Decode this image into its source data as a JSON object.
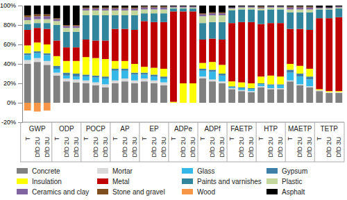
{
  "chart_data": {
    "type": "bar",
    "stacked": true,
    "categories": [
      "T",
      "DfD 2U",
      "DfD 3U",
      "T",
      "DfD 2U",
      "DfD 3U",
      "T",
      "DfD 2U",
      "DfD 3U",
      "T",
      "DfD 2U",
      "DfD 3U",
      "T",
      "DfD 2U",
      "DfD 3U",
      "T",
      "DfD 2U",
      "DfD 3U",
      "T",
      "DfD 2U",
      "DfD 3U",
      "T",
      "DfD 2U",
      "DfD 3U",
      "T",
      "DfD 2U",
      "DfD 3U",
      "T",
      "DfD 2U",
      "DfD 3U",
      "T",
      "DfD 2U",
      "DfD 3U"
    ],
    "groups": [
      "GWP",
      "ODP",
      "POCP",
      "AP",
      "EP",
      "ADPe",
      "ADPf",
      "FAETP",
      "HTP",
      "MAETP",
      "TETP"
    ],
    "ylim": [
      -20,
      100
    ],
    "yticks": [
      {
        "value": -20,
        "label": "-20%"
      },
      {
        "value": 0,
        "label": "0%"
      },
      {
        "value": 20,
        "label": "20%"
      },
      {
        "value": 40,
        "label": "40%"
      },
      {
        "value": 60,
        "label": "60%"
      },
      {
        "value": 80,
        "label": "80%"
      },
      {
        "value": 100,
        "label": "100%"
      }
    ],
    "grid": false,
    "legend": "bottom",
    "series": [
      {
        "name": "Concrete",
        "color": "#808080",
        "values": [
          40,
          42,
          39,
          28,
          22,
          21,
          20,
          18,
          16,
          20,
          22,
          20,
          22,
          20,
          18,
          0,
          0,
          0,
          25,
          22,
          20,
          14,
          12,
          11,
          16,
          14,
          14,
          22,
          18,
          16,
          12,
          10,
          10
        ]
      },
      {
        "name": "Mortar",
        "color": "#d9d9d9",
        "values": [
          4,
          4,
          4,
          3,
          3,
          3,
          3,
          3,
          3,
          3,
          3,
          3,
          3,
          3,
          3,
          0,
          0,
          0,
          2,
          2,
          2,
          1,
          1,
          1,
          1,
          1,
          1,
          1,
          1,
          1,
          1,
          1,
          1
        ]
      },
      {
        "name": "Glass",
        "color": "#33b8e8",
        "values": [
          5,
          5,
          6,
          4,
          3,
          3,
          4,
          5,
          6,
          10,
          8,
          6,
          4,
          4,
          4,
          0,
          0,
          0,
          6,
          8,
          6,
          1,
          2,
          2,
          2,
          3,
          3,
          8,
          8,
          7,
          0,
          0,
          0
        ]
      },
      {
        "name": "Gypsum",
        "color": "#3d7fa6",
        "values": [
          2,
          2,
          2,
          3,
          3,
          3,
          2,
          2,
          2,
          2,
          2,
          2,
          2,
          2,
          2,
          0,
          0,
          0,
          2,
          2,
          2,
          1,
          1,
          1,
          1,
          1,
          1,
          3,
          3,
          3,
          0,
          0,
          0
        ]
      },
      {
        "name": "Insulation",
        "color": "#ffff00",
        "values": [
          8,
          9,
          9,
          10,
          12,
          13,
          18,
          18,
          18,
          8,
          8,
          9,
          6,
          7,
          8,
          1,
          20,
          20,
          6,
          8,
          9,
          5,
          5,
          5,
          7,
          9,
          8,
          6,
          8,
          8,
          1,
          1,
          1
        ]
      },
      {
        "name": "Metal",
        "color": "#c00000",
        "values": [
          16,
          15,
          16,
          16,
          14,
          14,
          18,
          18,
          19,
          33,
          33,
          35,
          47,
          47,
          48,
          93,
          74,
          74,
          24,
          24,
          26,
          60,
          62,
          63,
          54,
          54,
          55,
          36,
          38,
          40,
          73,
          75,
          76
        ]
      },
      {
        "name": "Paints and varnishes",
        "color": "#31859c",
        "values": [
          6,
          5,
          6,
          16,
          16,
          16,
          25,
          26,
          26,
          14,
          14,
          15,
          8,
          9,
          9,
          3,
          3,
          3,
          17,
          17,
          18,
          13,
          13,
          13,
          14,
          14,
          14,
          17,
          17,
          18,
          9,
          9,
          9
        ]
      },
      {
        "name": "Plastic",
        "color": "#c3d69b",
        "values": [
          4,
          4,
          4,
          4,
          4,
          4,
          5,
          5,
          5,
          5,
          5,
          5,
          4,
          4,
          4,
          1,
          1,
          1,
          7,
          7,
          7,
          2,
          2,
          2,
          2,
          2,
          2,
          3,
          3,
          3,
          1,
          1,
          1
        ]
      },
      {
        "name": "Ceramics and clay",
        "color": "#8064a2",
        "values": [
          3,
          3,
          3,
          2,
          2,
          2,
          2,
          2,
          2,
          2,
          2,
          2,
          2,
          2,
          2,
          1,
          1,
          1,
          2,
          2,
          2,
          1,
          1,
          1,
          1,
          1,
          1,
          2,
          2,
          2,
          1,
          1,
          1
        ]
      },
      {
        "name": "Stone and gravel",
        "color": "#7f4f1f",
        "values": [
          2,
          2,
          2,
          1,
          1,
          1,
          1,
          1,
          1,
          1,
          1,
          1,
          1,
          1,
          1,
          0,
          0,
          0,
          1,
          1,
          1,
          0,
          0,
          0,
          1,
          0,
          0,
          1,
          1,
          1,
          0,
          0,
          0
        ]
      },
      {
        "name": "Wood",
        "color": "#f79646",
        "values": [
          -8,
          -9,
          -8,
          0,
          0,
          0,
          0,
          0,
          0,
          0,
          0,
          0,
          0,
          0,
          0,
          0,
          0,
          0,
          0,
          0,
          0,
          0,
          0,
          0,
          0,
          0,
          0,
          0,
          0,
          0,
          0,
          0,
          0
        ]
      },
      {
        "name": "Asphalt",
        "color": "#000000",
        "values": [
          10,
          9,
          9,
          13,
          20,
          20,
          2,
          2,
          2,
          2,
          2,
          2,
          1,
          1,
          1,
          1,
          1,
          1,
          8,
          7,
          7,
          2,
          1,
          1,
          1,
          1,
          1,
          1,
          1,
          1,
          2,
          2,
          1
        ]
      }
    ]
  }
}
